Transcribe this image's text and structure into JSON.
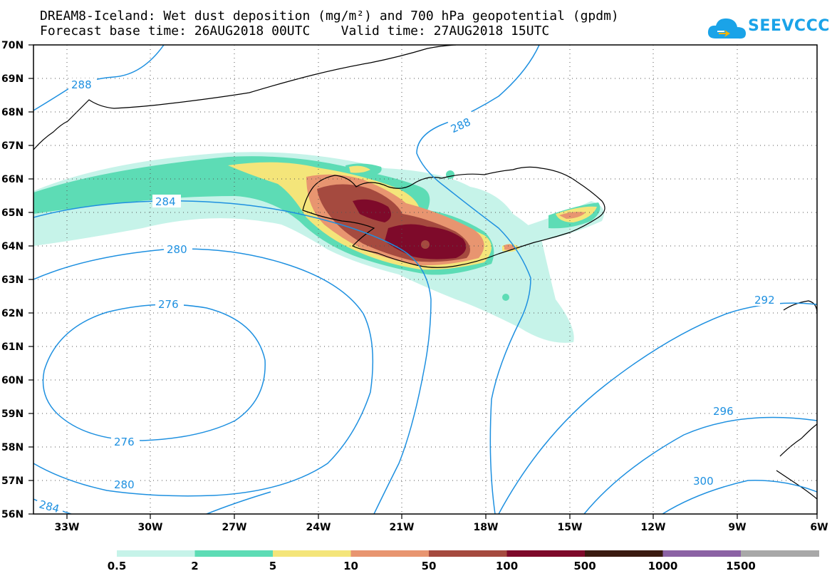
{
  "title": {
    "line1": "DREAM8-Iceland: Wet dust deposition (mg/m²) and 700 hPa geopotential (gpdm)",
    "line2": "Forecast base time: 26AUG2018 00UTC    Valid time: 27AUG2018 15UTC"
  },
  "logo": {
    "text": "SEEVCCC",
    "icon": "cloud-icon",
    "color": "#1aa3e8"
  },
  "axes": {
    "lat_labels": [
      "70N",
      "69N",
      "68N",
      "67N",
      "66N",
      "65N",
      "64N",
      "63N",
      "62N",
      "61N",
      "60N",
      "59N",
      "58N",
      "57N",
      "56N"
    ],
    "lon_labels": [
      "33W",
      "30W",
      "27W",
      "24W",
      "21W",
      "18W",
      "15W",
      "12W",
      "9W",
      "6W"
    ],
    "lat_range": [
      56,
      70
    ],
    "lon_range": [
      -34,
      -6
    ],
    "grid": true,
    "grid_style": "dotted"
  },
  "contours": {
    "color": "#1e90e0",
    "labels": [
      "288",
      "288",
      "284",
      "280",
      "276",
      "276",
      "280",
      "284",
      "292",
      "296",
      "300"
    ]
  },
  "legend": {
    "levels": [
      "0.5",
      "2",
      "5",
      "10",
      "50",
      "100",
      "500",
      "1000",
      "1500"
    ],
    "colors": [
      "#c6f3e9",
      "#5ddcb5",
      "#f4e57a",
      "#e89570",
      "#a54a3f",
      "#7e0a2a",
      "#3a1a10",
      "#8b62a4",
      "#a8a8a8"
    ]
  }
}
